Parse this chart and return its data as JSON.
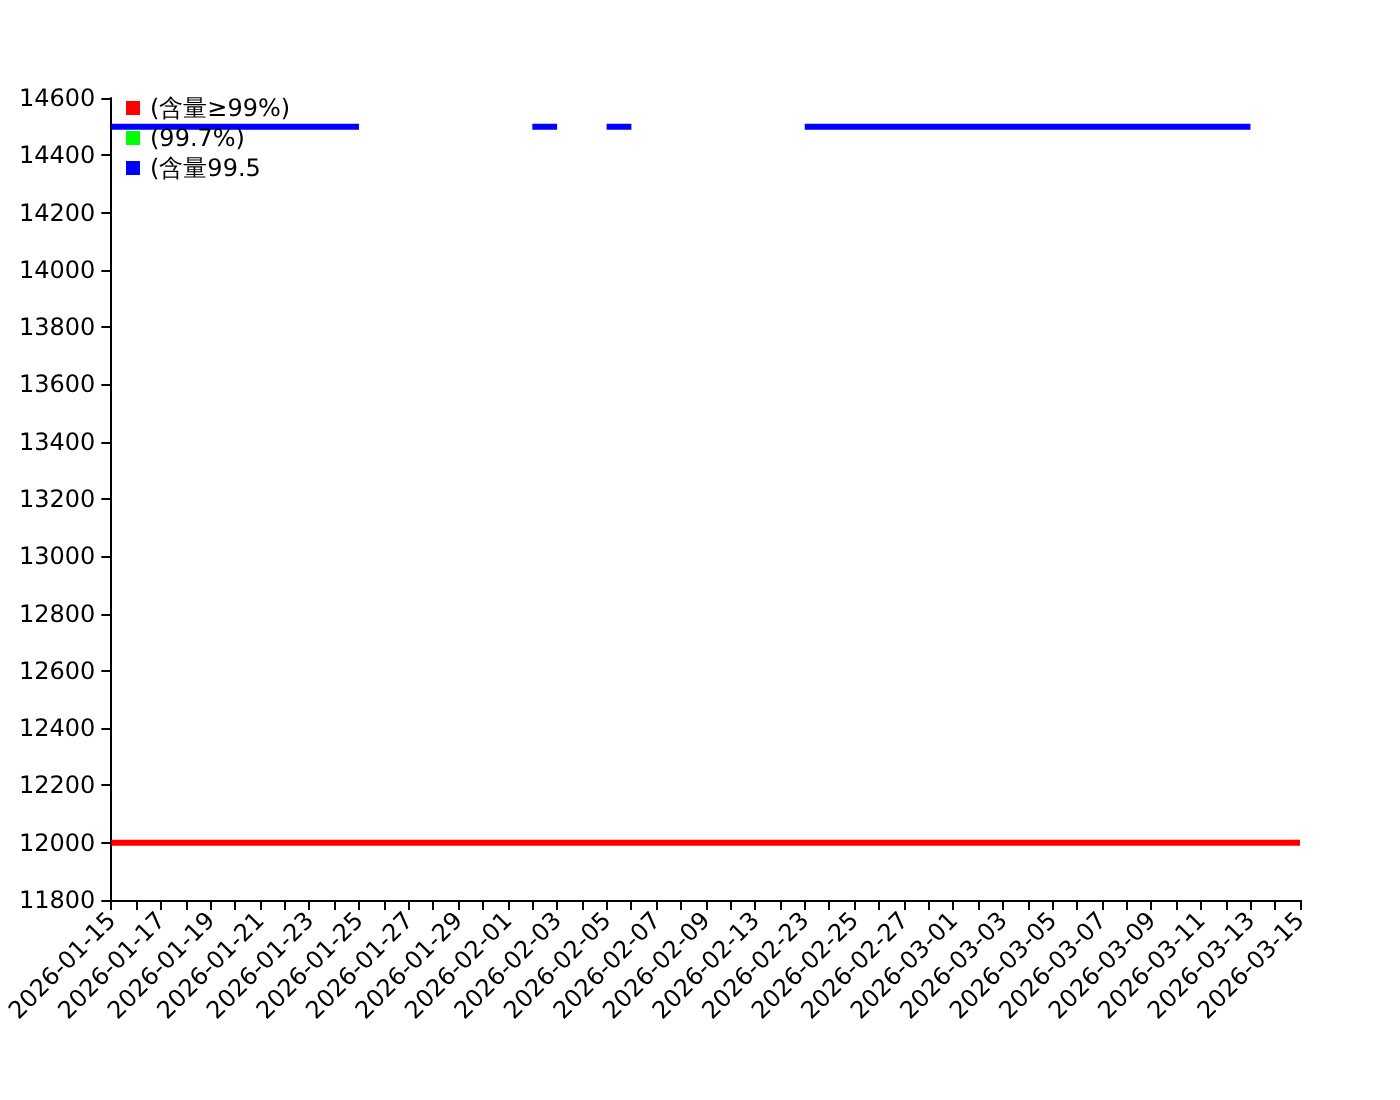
{
  "chart_data": {
    "type": "line",
    "categories": [
      "2026-01-15",
      null,
      "2026-01-17",
      null,
      "2026-01-19",
      null,
      "2026-01-21",
      null,
      "2026-01-23",
      null,
      "2026-01-25",
      null,
      "2026-01-27",
      null,
      "2026-01-29",
      null,
      "2026-02-01",
      null,
      "2026-02-03",
      null,
      "2026-02-05",
      null,
      "2026-02-07",
      null,
      "2026-02-09",
      null,
      "2026-02-13",
      null,
      "2026-02-23",
      null,
      "2026-02-25",
      null,
      "2026-02-27",
      null,
      "2026-03-01",
      null,
      "2026-03-03",
      null,
      "2026-03-05",
      null,
      "2026-03-07",
      null,
      "2026-03-09",
      null,
      "2026-03-11",
      null,
      "2026-03-13",
      null,
      "2026-03-15"
    ],
    "series": [
      {
        "name": "(含量≥99%)",
        "color": "#ff0000",
        "values": [
          12000,
          12000,
          12000,
          12000,
          12000,
          12000,
          12000,
          12000,
          12000,
          12000,
          12000,
          12000,
          12000,
          12000,
          12000,
          12000,
          12000,
          12000,
          12000,
          12000,
          12000,
          12000,
          12000,
          12000,
          12000,
          12000,
          12000,
          12000,
          12000,
          12000,
          12000,
          12000,
          12000,
          12000,
          12000,
          12000,
          12000,
          12000,
          12000,
          12000,
          12000,
          12000,
          12000,
          12000,
          12000,
          12000,
          12000,
          12000,
          12000
        ]
      },
      {
        "name": "(99.7%)",
        "color": "#00ff00",
        "values": [
          null,
          null,
          null,
          null,
          null,
          null,
          null,
          null,
          null,
          null,
          null,
          null,
          null,
          null,
          null,
          null,
          null,
          null,
          null,
          null,
          null,
          null,
          null,
          null,
          null,
          null,
          null,
          null,
          null,
          null,
          null,
          null,
          null,
          null,
          null,
          null,
          null,
          null,
          null,
          null,
          null,
          null,
          null,
          null,
          null,
          null,
          null,
          null,
          null
        ]
      },
      {
        "name": "(含量99.5",
        "color": "#0000ff",
        "values": [
          14500,
          14500,
          14500,
          14500,
          14500,
          14500,
          14500,
          14500,
          14500,
          14500,
          14500,
          null,
          null,
          null,
          null,
          null,
          null,
          14500,
          14500,
          null,
          14500,
          14500,
          null,
          null,
          null,
          null,
          null,
          null,
          14500,
          14500,
          14500,
          14500,
          14500,
          14500,
          14500,
          14500,
          14500,
          14500,
          14500,
          14500,
          14500,
          14500,
          14500,
          14500,
          14500,
          14500,
          14500,
          null,
          null
        ]
      }
    ],
    "ylim": [
      11800,
      14600
    ],
    "yticks": [
      11800,
      12000,
      12200,
      12400,
      12600,
      12800,
      13000,
      13200,
      13400,
      13600,
      13800,
      14000,
      14200,
      14400,
      14600
    ],
    "grid": false,
    "legend": "top left",
    "marker": "none",
    "line_style": "solid"
  }
}
